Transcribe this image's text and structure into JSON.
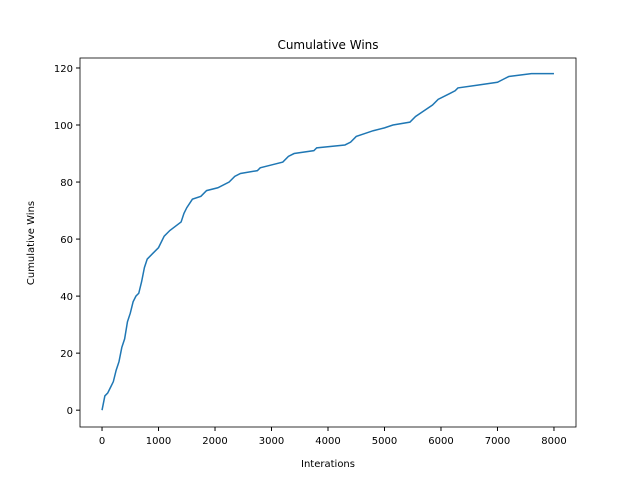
{
  "chart_data": {
    "type": "line",
    "title": "Cumulative Wins",
    "x_label": "Interations",
    "y_label": "Cumulative Wins",
    "x": [
      0,
      50,
      100,
      150,
      200,
      250,
      300,
      350,
      400,
      450,
      500,
      550,
      600,
      650,
      700,
      750,
      800,
      900,
      1000,
      1100,
      1200,
      1400,
      1450,
      1500,
      1600,
      1750,
      1850,
      2050,
      2250,
      2350,
      2450,
      2750,
      2800,
      3000,
      3200,
      3300,
      3400,
      3750,
      3800,
      4300,
      4400,
      4500,
      4650,
      4800,
      5000,
      5150,
      5450,
      5550,
      5700,
      5850,
      5950,
      6150,
      6250,
      6300,
      6650,
      7000,
      7100,
      7200,
      7600,
      8000
    ],
    "series": [
      {
        "name": "Cumulative Wins",
        "color": "#1f77b4",
        "values": [
          0,
          5,
          6,
          8,
          10,
          14,
          17,
          22,
          25,
          31,
          34,
          38,
          40,
          41,
          45,
          50,
          53,
          55,
          57,
          61,
          63,
          66,
          69,
          71,
          74,
          75,
          77,
          78,
          80,
          82,
          83,
          84,
          85,
          86,
          87,
          89,
          90,
          91,
          92,
          93,
          94,
          96,
          97,
          98,
          99,
          100,
          101,
          103,
          105,
          107,
          109,
          111,
          112,
          113,
          114,
          115,
          116,
          117,
          118,
          118
        ]
      }
    ],
    "xlim": [
      -390,
      8390
    ],
    "ylim": [
      -5.9,
      123.5
    ],
    "xticks": [
      0,
      1000,
      2000,
      3000,
      4000,
      5000,
      6000,
      7000,
      8000
    ],
    "yticks": [
      0,
      20,
      40,
      60,
      80,
      100,
      120
    ]
  }
}
